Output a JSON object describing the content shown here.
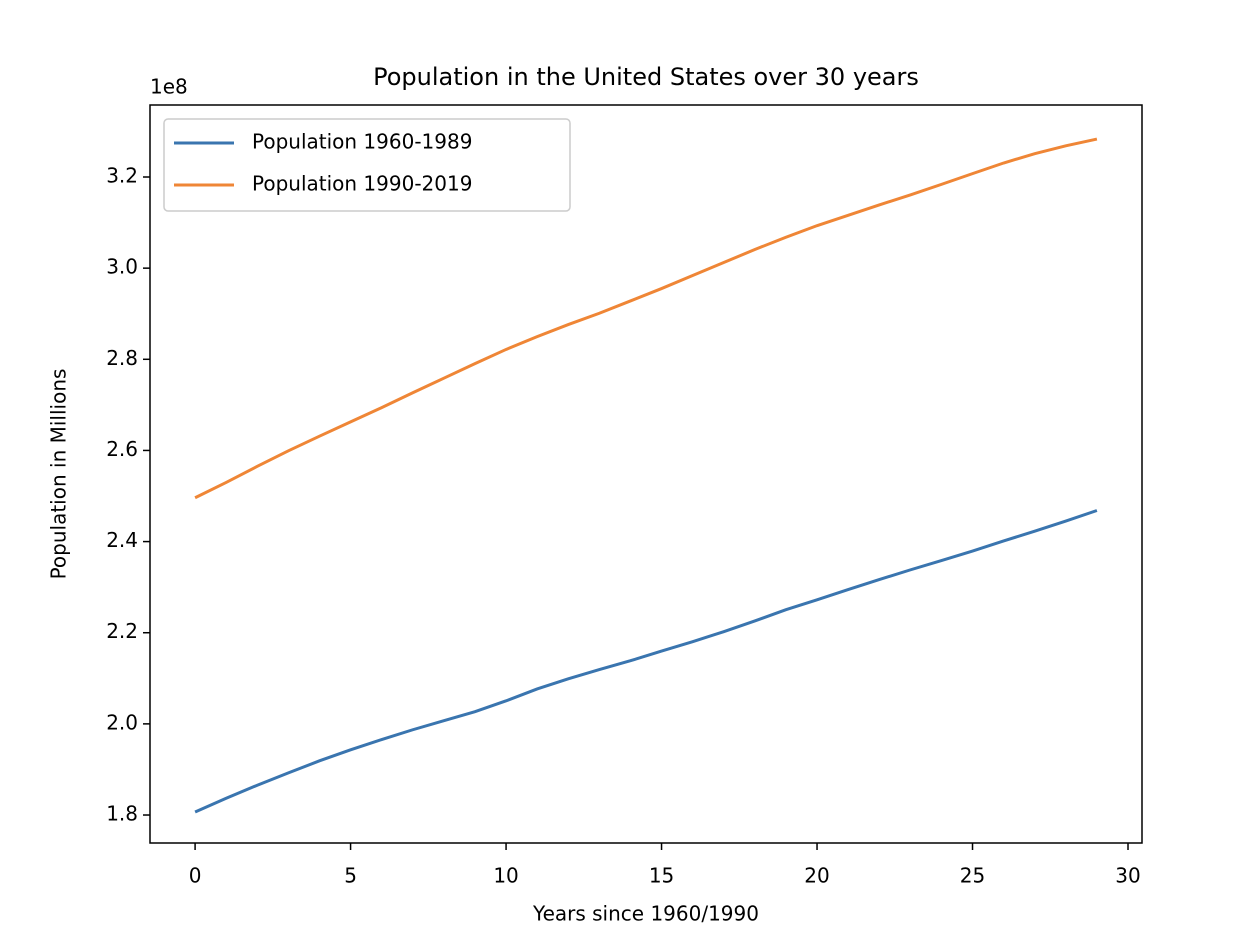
{
  "chart_data": {
    "type": "line",
    "title": "Population in the United States over 30 years",
    "x_label": "Years since 1960/1990",
    "y_label": "Population in Millions",
    "y_offset_label": "1e8",
    "x": [
      0,
      1,
      2,
      3,
      4,
      5,
      6,
      7,
      8,
      9,
      10,
      11,
      12,
      13,
      14,
      15,
      16,
      17,
      18,
      19,
      20,
      21,
      22,
      23,
      24,
      25,
      26,
      27,
      28,
      29
    ],
    "series": [
      {
        "name": "Population 1960-1989",
        "color": "#3a75af",
        "values": [
          180671000,
          183691000,
          186538000,
          189242000,
          191889000,
          194303000,
          196560000,
          198712000,
          200706000,
          202677000,
          205052000,
          207661000,
          209896000,
          211909000,
          213854000,
          215973000,
          218035000,
          220239000,
          222585000,
          225055000,
          227225000,
          229466000,
          231664000,
          233792000,
          235825000,
          237924000,
          240133000,
          242289000,
          244499000,
          246819000
        ]
      },
      {
        "name": "Population 1990-2019",
        "color": "#ef8636",
        "values": [
          249623000,
          252981000,
          256514000,
          259919000,
          263126000,
          266278000,
          269394000,
          272657000,
          275854000,
          279040000,
          282162411,
          284968955,
          287625193,
          290107933,
          292805298,
          295516599,
          298379912,
          301231207,
          304093966,
          306771529,
          309327143,
          311583481,
          313877662,
          316059947,
          318386329,
          320738994,
          323071755,
          325122128,
          326838199,
          328329953
        ]
      }
    ],
    "xlim": [
      -1.45,
      30.45
    ],
    "xticks": [
      0,
      5,
      10,
      15,
      20,
      25,
      30
    ],
    "ylim": [
      173860000,
      335800000
    ],
    "yticks": [
      {
        "value": 180000000,
        "label": "1.8"
      },
      {
        "value": 200000000,
        "label": "2.0"
      },
      {
        "value": 220000000,
        "label": "2.2"
      },
      {
        "value": 240000000,
        "label": "2.4"
      },
      {
        "value": 260000000,
        "label": "2.6"
      },
      {
        "value": 280000000,
        "label": "2.8"
      },
      {
        "value": 300000000,
        "label": "3.0"
      },
      {
        "value": 320000000,
        "label": "3.2"
      }
    ],
    "grid": false,
    "legend": "upper left"
  }
}
